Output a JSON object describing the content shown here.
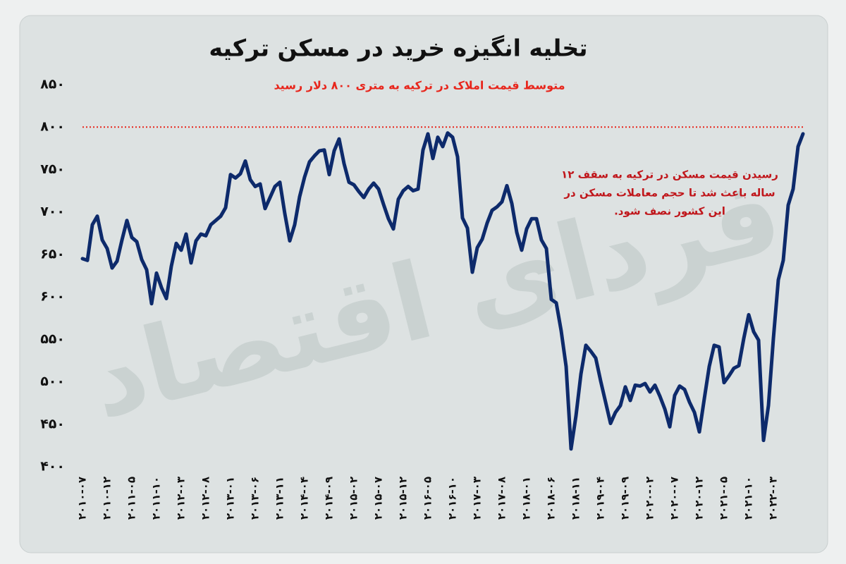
{
  "chart_data": {
    "type": "line",
    "title": "تخلیه انگیزه خرید در مسکن ترکیه",
    "subtitle": "متوسط قیمت املاک در ترکیه به متری ۸۰۰ دلار رسید",
    "annotation": [
      "رسیدن قیمت مسکن در ترکیه به سقف ۱۲",
      "ساله باعث شد تا حجم معاملات مسکن در",
      "این کشور نصف شود."
    ],
    "watermark": "فردای اقتصاد",
    "reference_line": 800,
    "reference_color": "#e8261c",
    "categories": [
      "۲۰۱۰-۰۷",
      null,
      null,
      null,
      null,
      "۲۰۱۰-۱۲",
      null,
      null,
      null,
      null,
      "۲۰۱۱-۰۵",
      null,
      null,
      null,
      null,
      "۲۰۱۱-۱۰",
      null,
      null,
      null,
      null,
      "۲۰۱۲-۰۳",
      null,
      null,
      null,
      null,
      "۲۰۱۲-۰۸",
      null,
      null,
      null,
      null,
      "۲۰۱۳-۰۱",
      null,
      null,
      null,
      null,
      "۲۰۱۳-۰۶",
      null,
      null,
      null,
      null,
      "۲۰۱۳-۱۱",
      null,
      null,
      null,
      null,
      "۲۰۱۴-۰۴",
      null,
      null,
      null,
      null,
      "۲۰۱۴-۰۹",
      null,
      null,
      null,
      null,
      "۲۰۱۵-۰۲",
      null,
      null,
      null,
      null,
      "۲۰۱۵-۰۷",
      null,
      null,
      null,
      null,
      "۲۰۱۵-۱۲",
      null,
      null,
      null,
      null,
      "۲۰۱۶-۰۵",
      null,
      null,
      null,
      null,
      "۲۰۱۶-۱۰",
      null,
      null,
      null,
      null,
      "۲۰۱۷-۰۳",
      null,
      null,
      null,
      null,
      "۲۰۱۷-۰۸",
      null,
      null,
      null,
      null,
      "۲۰۱۸-۰۱",
      null,
      null,
      null,
      null,
      "۲۰۱۸-۰۶",
      null,
      null,
      null,
      null,
      "۲۰۱۸-۱۱",
      null,
      null,
      null,
      null,
      "۲۰۱۹-۰۴",
      null,
      null,
      null,
      null,
      "۲۰۱۹-۰۹",
      null,
      null,
      null,
      null,
      "۲۰۲۰-۰۲",
      null,
      null,
      null,
      null,
      "۲۰۲۰-۰۷",
      null,
      null,
      null,
      null,
      "۲۰۲۰-۱۲",
      null,
      null,
      null,
      null,
      "۲۰۲۱-۰۵",
      null,
      null,
      null,
      null,
      "۲۰۲۱-۱۰",
      null,
      null,
      null,
      null,
      "۲۰۲۲-۰۳",
      null,
      null,
      null,
      null,
      null,
      null
    ],
    "series": [
      {
        "color": "#0d2a6b",
        "values": [
          645,
          643,
          685,
          695,
          667,
          657,
          634,
          642,
          667,
          690,
          670,
          665,
          644,
          632,
          592,
          628,
          611,
          598,
          636,
          663,
          655,
          674,
          640,
          666,
          674,
          672,
          685,
          690,
          695,
          705,
          744,
          740,
          745,
          760,
          738,
          730,
          733,
          704,
          717,
          730,
          735,
          698,
          666,
          685,
          718,
          741,
          759,
          766,
          772,
          773,
          744,
          772,
          786,
          757,
          735,
          732,
          724,
          717,
          727,
          734,
          727,
          709,
          692,
          680,
          715,
          725,
          730,
          725,
          727,
          773,
          792,
          763,
          788,
          777,
          793,
          788,
          765,
          693,
          681,
          629,
          658,
          668,
          687,
          702,
          706,
          712,
          731,
          710,
          676,
          655,
          680,
          692,
          692,
          667,
          657,
          597,
          593,
          560,
          518,
          421,
          460,
          509,
          543,
          536,
          528,
          501,
          476,
          451,
          464,
          472,
          494,
          478,
          496,
          495,
          498,
          488,
          496,
          483,
          468,
          447,
          484,
          495,
          491,
          476,
          464,
          441,
          480,
          518,
          543,
          541,
          499,
          507,
          516,
          519,
          551,
          579,
          559,
          549,
          431,
          472,
          551,
          620,
          643,
          708,
          727,
          777,
          792
        ]
      }
    ],
    "ylim": [
      400,
      850
    ],
    "yticks": [
      {
        "value": 400,
        "label": "۴۰۰"
      },
      {
        "value": 450,
        "label": "۴۵۰"
      },
      {
        "value": 500,
        "label": "۵۰۰"
      },
      {
        "value": 550,
        "label": "۵۵۰"
      },
      {
        "value": 600,
        "label": "۶۰۰"
      },
      {
        "value": 650,
        "label": "۶۵۰"
      },
      {
        "value": 700,
        "label": "۷۰۰"
      },
      {
        "value": 750,
        "label": "۷۵۰"
      },
      {
        "value": 800,
        "label": "۸۰۰"
      },
      {
        "value": 850,
        "label": "۸۵۰"
      }
    ]
  }
}
